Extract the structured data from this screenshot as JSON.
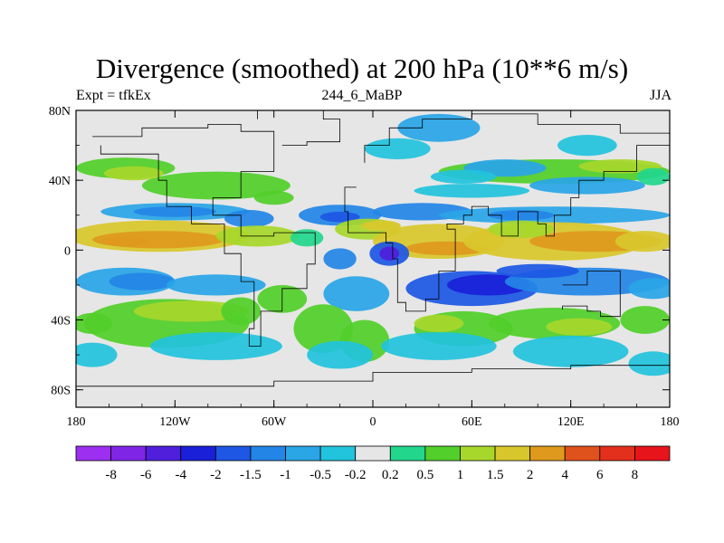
{
  "chart_data": {
    "type": "heatmap",
    "title": "Divergence (smoothed) at 200 hPa (10**6 m/s)",
    "left_string": "Expt = tfkEx",
    "center_string": "244_6_MaBP",
    "right_string": "JJA",
    "x_ticks": [
      "180",
      "120W",
      "60W",
      "0",
      "60E",
      "120E",
      "180"
    ],
    "y_ticks": [
      "80N",
      "40N",
      "0",
      "40S",
      "80S"
    ],
    "xlim": [
      -180,
      180
    ],
    "ylim": [
      -90,
      80
    ],
    "colorbar": {
      "labels": [
        "-8",
        "-6",
        "-4",
        "-2",
        "-1.5",
        "-1",
        "-0.5",
        "-0.2",
        "0.2",
        "0.5",
        "1",
        "1.5",
        "2",
        "4",
        "6",
        "8"
      ],
      "colors": [
        "#9c2ff0",
        "#7f26e6",
        "#4f1fdc",
        "#1a20d8",
        "#1d57e3",
        "#2385e6",
        "#2aa5e6",
        "#22c3dd",
        "#e6e6e6",
        "#22d68c",
        "#52cf2a",
        "#a7d72b",
        "#d8c72c",
        "#df9a1d",
        "#e0521b",
        "#e3301c",
        "#e8141c"
      ]
    }
  }
}
